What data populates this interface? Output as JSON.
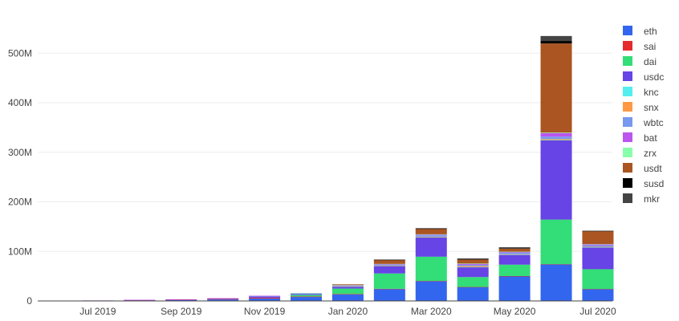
{
  "chart_data": {
    "type": "bar",
    "stacked": true,
    "categories": [
      "2019-06",
      "2019-07",
      "2019-08",
      "2019-09",
      "2019-10",
      "2019-11",
      "2019-12",
      "2020-01",
      "2020-02",
      "2020-03",
      "2020-04",
      "2020-05",
      "2020-06",
      "2020-07"
    ],
    "x_ticks": [
      {
        "label": "Jul 2019",
        "category": "2019-07"
      },
      {
        "label": "Sep 2019",
        "category": "2019-09"
      },
      {
        "label": "Nov 2019",
        "category": "2019-11"
      },
      {
        "label": "Jan 2020",
        "category": "2020-01"
      },
      {
        "label": "Mar 2020",
        "category": "2020-03"
      },
      {
        "label": "May 2020",
        "category": "2020-05"
      },
      {
        "label": "Jul 2020",
        "category": "2020-07"
      }
    ],
    "y_ticks": [
      {
        "value": 0,
        "label": "0"
      },
      {
        "value": 100000000,
        "label": "100M"
      },
      {
        "value": 200000000,
        "label": "200M"
      },
      {
        "value": 300000000,
        "label": "300M"
      },
      {
        "value": 400000000,
        "label": "400M"
      },
      {
        "value": 500000000,
        "label": "500M"
      }
    ],
    "ylim": [
      0,
      575000000
    ],
    "grid": true,
    "legend_position": "right",
    "series": [
      {
        "name": "eth",
        "color": "#3366ee",
        "values": [
          0,
          500000,
          1200000,
          1800000,
          3000000,
          5000000,
          8000000,
          13000000,
          24000000,
          40000000,
          28000000,
          50000000,
          74000000,
          24000000
        ]
      },
      {
        "name": "sai",
        "color": "#e52b2b",
        "values": [
          0,
          300000,
          500000,
          700000,
          1000000,
          1500000,
          1000000,
          1000000,
          500000,
          300000,
          200000,
          200000,
          200000,
          100000
        ]
      },
      {
        "name": "dai",
        "color": "#33dd77",
        "values": [
          0,
          0,
          0,
          0,
          0,
          0,
          3000000,
          11000000,
          31000000,
          49000000,
          20000000,
          23000000,
          90000000,
          40000000
        ]
      },
      {
        "name": "usdc",
        "color": "#6644e5",
        "values": [
          0,
          100000,
          300000,
          500000,
          1000000,
          2500000,
          2000000,
          4000000,
          15000000,
          39000000,
          20000000,
          20000000,
          160000000,
          44000000
        ]
      },
      {
        "name": "knc",
        "color": "#55eeee",
        "values": [
          0,
          0,
          0,
          0,
          0,
          0,
          500000,
          300000,
          300000,
          300000,
          300000,
          200000,
          500000,
          200000
        ]
      },
      {
        "name": "snx",
        "color": "#ff9944",
        "values": [
          0,
          0,
          0,
          0,
          0,
          0,
          0,
          300000,
          500000,
          1000000,
          2000000,
          1000000,
          2000000,
          1000000
        ]
      },
      {
        "name": "wbtc",
        "color": "#7799ee",
        "values": [
          0,
          0,
          0,
          0,
          0,
          500000,
          500000,
          1000000,
          1500000,
          3000000,
          2500000,
          3000000,
          5000000,
          3000000
        ]
      },
      {
        "name": "bat",
        "color": "#bb55ee",
        "values": [
          0,
          100000,
          200000,
          300000,
          500000,
          1000000,
          500000,
          1000000,
          1500000,
          1500000,
          2000000,
          1500000,
          7000000,
          2000000
        ]
      },
      {
        "name": "zrx",
        "color": "#88ffaa",
        "values": [
          0,
          0,
          0,
          0,
          0,
          0,
          500000,
          500000,
          500000,
          500000,
          500000,
          500000,
          1000000,
          500000
        ]
      },
      {
        "name": "usdt",
        "color": "#aa5522",
        "values": [
          0,
          0,
          0,
          0,
          0,
          0,
          0,
          1500000,
          8000000,
          11000000,
          8000000,
          6000000,
          180000000,
          26000000
        ]
      },
      {
        "name": "susd",
        "color": "#000000",
        "values": [
          0,
          0,
          0,
          0,
          0,
          0,
          0,
          0,
          300000,
          500000,
          1000000,
          1000000,
          5000000,
          500000
        ]
      },
      {
        "name": "mkr",
        "color": "#444444",
        "values": [
          0,
          0,
          0,
          0,
          0,
          0,
          0,
          0,
          500000,
          1000000,
          1500000,
          2000000,
          10000000,
          500000
        ]
      }
    ]
  }
}
